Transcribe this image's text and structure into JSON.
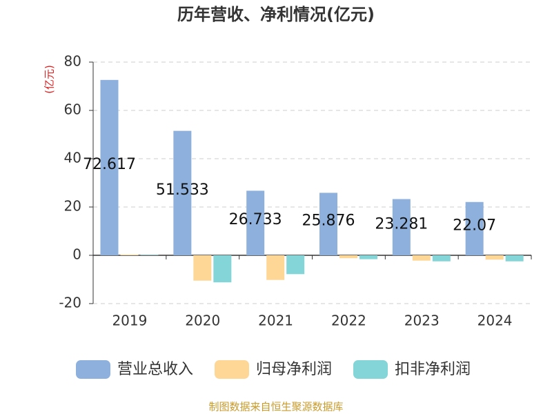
{
  "chart_data": {
    "type": "bar",
    "title": "历年营收、净利情况(亿元)",
    "y_axis_label": "(亿元)",
    "categories": [
      "2019",
      "2020",
      "2021",
      "2022",
      "2023",
      "2024"
    ],
    "series": [
      {
        "name": "营业总收入",
        "color": "#8eb0dc",
        "values": [
          72.617,
          51.533,
          26.733,
          25.876,
          23.281,
          22.07
        ]
      },
      {
        "name": "归母净利润",
        "color": "#fed797",
        "values": [
          0.3,
          -10.5,
          -10.2,
          -1.2,
          -2.2,
          -1.8
        ]
      },
      {
        "name": "扣非净利润",
        "color": "#84d5d7",
        "values": [
          0.2,
          -11.2,
          -7.8,
          -1.6,
          -2.5,
          -2.5
        ]
      }
    ],
    "ylim": [
      -20,
      80
    ],
    "yticks": [
      -20,
      0,
      20,
      40,
      60,
      80
    ],
    "grid": true,
    "source": "制图数据来自恒生聚源数据库"
  }
}
